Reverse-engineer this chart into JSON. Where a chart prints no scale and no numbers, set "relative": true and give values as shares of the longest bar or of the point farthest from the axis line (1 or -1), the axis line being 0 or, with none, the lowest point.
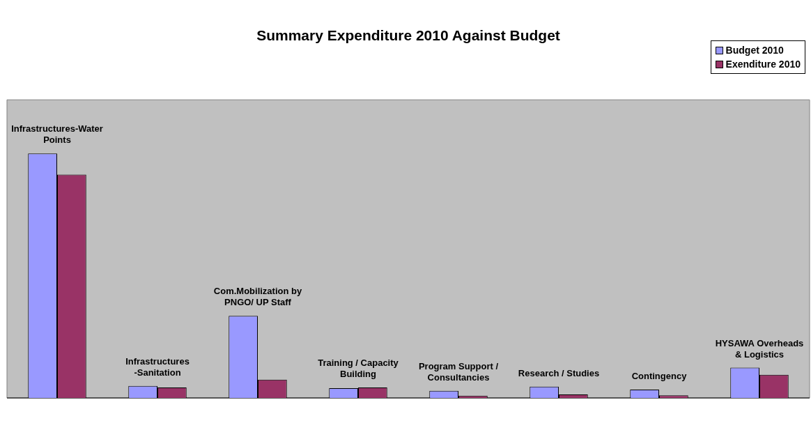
{
  "chart_data": {
    "type": "bar",
    "title": "Summary Expenditure 2010 Against Budget",
    "relative": true,
    "legend": "top right",
    "categories": [
      "Infrastructures-Water Points",
      "Infrastructures -Sanitation",
      "Com.Mobilization by PNGO/ UP Staff",
      "Training / Capacity Building",
      "Program Support / Consultancies",
      "Research / Studies",
      "Contingency",
      "HYSAWA Overheads & Logistics"
    ],
    "series": [
      {
        "name": "Budget 2010",
        "color": "#9999ff",
        "values": [
          1,
          0.049,
          0.336,
          0.04,
          0.029,
          0.046,
          0.034,
          0.124
        ]
      },
      {
        "name": "Exenditure 2010",
        "color": "#993366",
        "values": [
          0.914,
          0.043,
          0.075,
          0.043,
          0.009,
          0.014,
          0.011,
          0.095
        ]
      }
    ]
  }
}
